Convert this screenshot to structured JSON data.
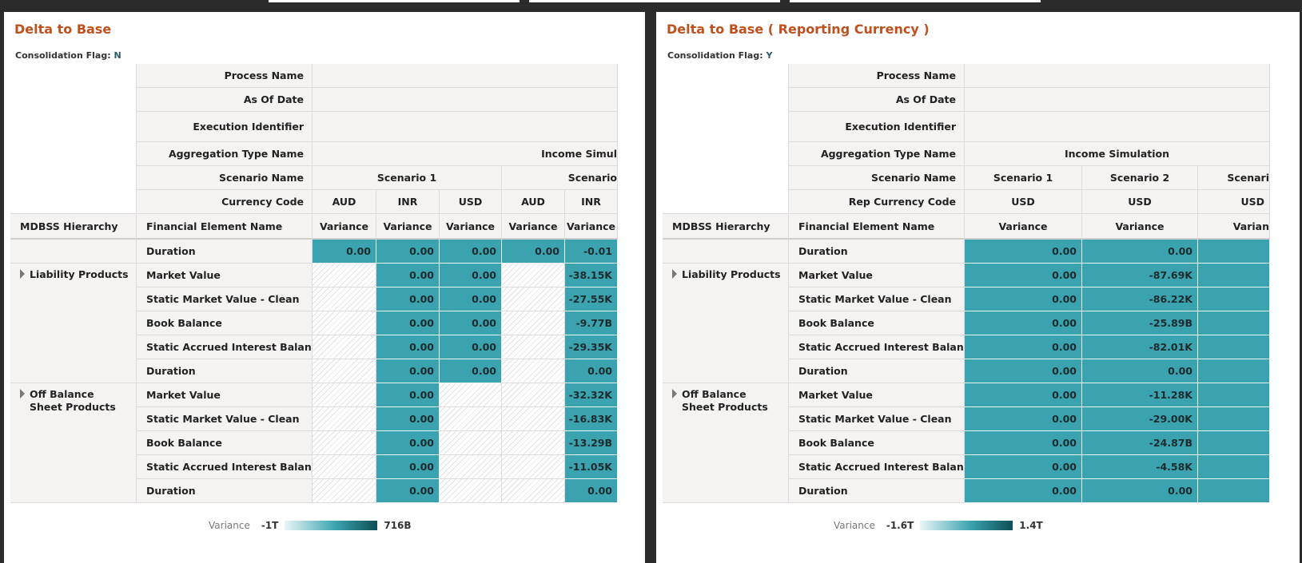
{
  "panels": [
    {
      "title": "Delta to Base",
      "flag_label": "Consolidation Flag:",
      "flag_value": "N",
      "header_labels": [
        "Process Name",
        "As Of Date",
        "Execution Identifier",
        "Aggregation Type Name",
        "Scenario Name",
        "Currency Code"
      ],
      "aggregation_value": "Income Simul",
      "scenarios": [
        "Scenario 1",
        "Scenario"
      ],
      "currencies": [
        "AUD",
        "INR",
        "USD",
        "AUD",
        "INR"
      ],
      "col_headers": {
        "hierarchy": "MDBSS Hierarchy",
        "element": "Financial Element Name",
        "measures": [
          "Variance",
          "Variance",
          "Variance",
          "Variance",
          "Variance"
        ]
      },
      "groups": [
        {
          "name": "",
          "rows": [
            {
              "element": "Duration",
              "values": [
                "0.00",
                "0.00",
                "0.00",
                "0.00",
                "-0.01"
              ]
            }
          ]
        },
        {
          "name": "Liability Products",
          "rows": [
            {
              "element": "Market Value",
              "values": [
                null,
                "0.00",
                "0.00",
                null,
                "-38.15K"
              ]
            },
            {
              "element": "Static Market Value - Clean",
              "values": [
                null,
                "0.00",
                "0.00",
                null,
                "-27.55K"
              ]
            },
            {
              "element": "Book Balance",
              "values": [
                null,
                "0.00",
                "0.00",
                null,
                "-9.77B"
              ]
            },
            {
              "element": "Static Accrued Interest Balance",
              "values": [
                null,
                "0.00",
                "0.00",
                null,
                "-29.35K"
              ]
            },
            {
              "element": "Duration",
              "values": [
                null,
                "0.00",
                "0.00",
                null,
                "0.00"
              ]
            }
          ]
        },
        {
          "name": "Off Balance Sheet Products",
          "rows": [
            {
              "element": "Market Value",
              "values": [
                null,
                "0.00",
                null,
                null,
                "-32.32K"
              ]
            },
            {
              "element": "Static Market Value - Clean",
              "values": [
                null,
                "0.00",
                null,
                null,
                "-16.83K"
              ]
            },
            {
              "element": "Book Balance",
              "values": [
                null,
                "0.00",
                null,
                null,
                "-13.29B"
              ]
            },
            {
              "element": "Static Accrued Interest Balance",
              "values": [
                null,
                "0.00",
                null,
                null,
                "-11.05K"
              ]
            },
            {
              "element": "Duration",
              "values": [
                null,
                "0.00",
                null,
                null,
                "0.00"
              ]
            }
          ]
        }
      ],
      "legend": {
        "label": "Variance",
        "min": "-1T",
        "max": "716B"
      }
    },
    {
      "title": "Delta to Base ( Reporting Currency )",
      "flag_label": "Consolidation Flag:",
      "flag_value": "Y",
      "header_labels": [
        "Process Name",
        "As Of Date",
        "Execution Identifier",
        "Aggregation Type Name",
        "Scenario Name",
        "Rep Currency Code"
      ],
      "aggregation_value": "Income Simulation",
      "scenarios": [
        "Scenario 1",
        "Scenario 2",
        "Scenari"
      ],
      "currencies": [
        "USD",
        "USD",
        "USD"
      ],
      "col_headers": {
        "hierarchy": "MDBSS Hierarchy",
        "element": "Financial Element Name",
        "measures": [
          "Variance",
          "Variance",
          "Varian"
        ]
      },
      "groups": [
        {
          "name": "",
          "rows": [
            {
              "element": "Duration",
              "values": [
                "0.00",
                "0.00",
                ""
              ]
            }
          ]
        },
        {
          "name": "Liability Products",
          "rows": [
            {
              "element": "Market Value",
              "values": [
                "0.00",
                "-87.69K",
                ""
              ]
            },
            {
              "element": "Static Market Value - Clean",
              "values": [
                "0.00",
                "-86.22K",
                ""
              ]
            },
            {
              "element": "Book Balance",
              "values": [
                "0.00",
                "-25.89B",
                ""
              ]
            },
            {
              "element": "Static Accrued Interest Balance",
              "values": [
                "0.00",
                "-82.01K",
                ""
              ]
            },
            {
              "element": "Duration",
              "values": [
                "0.00",
                "0.00",
                ""
              ]
            }
          ]
        },
        {
          "name": "Off Balance Sheet Products",
          "rows": [
            {
              "element": "Market Value",
              "values": [
                "0.00",
                "-11.28K",
                ""
              ]
            },
            {
              "element": "Static Market Value - Clean",
              "values": [
                "0.00",
                "-29.00K",
                ""
              ]
            },
            {
              "element": "Book Balance",
              "values": [
                "0.00",
                "-24.87B",
                ""
              ]
            },
            {
              "element": "Static Accrued Interest Balance",
              "values": [
                "0.00",
                "-4.58K",
                ""
              ]
            },
            {
              "element": "Duration",
              "values": [
                "0.00",
                "0.00",
                ""
              ]
            }
          ]
        }
      ],
      "legend": {
        "label": "Variance",
        "min": "-1.6T",
        "max": "1.4T"
      }
    }
  ],
  "colors": {
    "title": "#c0501e",
    "cell_fill": "#3ba3b0",
    "legend_low": "#eaf6f7",
    "legend_high": "#0d4f54"
  }
}
